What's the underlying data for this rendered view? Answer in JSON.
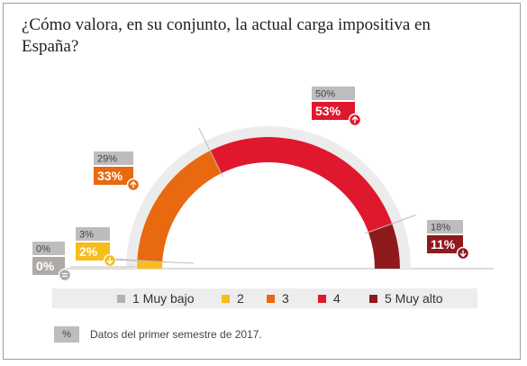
{
  "title": "¿Cómo valora, en su conjunto, la actual carga impositiva en España?",
  "chart_data": {
    "type": "pie",
    "categories": [
      "1 Muy bajo",
      "2",
      "3",
      "4",
      "5 Muy alto"
    ],
    "values": [
      0,
      2,
      33,
      53,
      11
    ],
    "previous_values": [
      0,
      3,
      29,
      50,
      18
    ],
    "value_labels": [
      "0%",
      "2%",
      "33%",
      "53%",
      "11%"
    ],
    "previous_labels": [
      "0%",
      "3%",
      "29%",
      "50%",
      "18%"
    ],
    "trend": [
      "equal",
      "down",
      "up",
      "up",
      "down"
    ],
    "colors": [
      "#b7b1ac",
      "#f7bd1a",
      "#e8690f",
      "#e0182d",
      "#8f1a1c"
    ],
    "legend_placement": "bottom"
  },
  "note": {
    "symbol": "%",
    "text": "Datos del primer semestre de 2017."
  }
}
